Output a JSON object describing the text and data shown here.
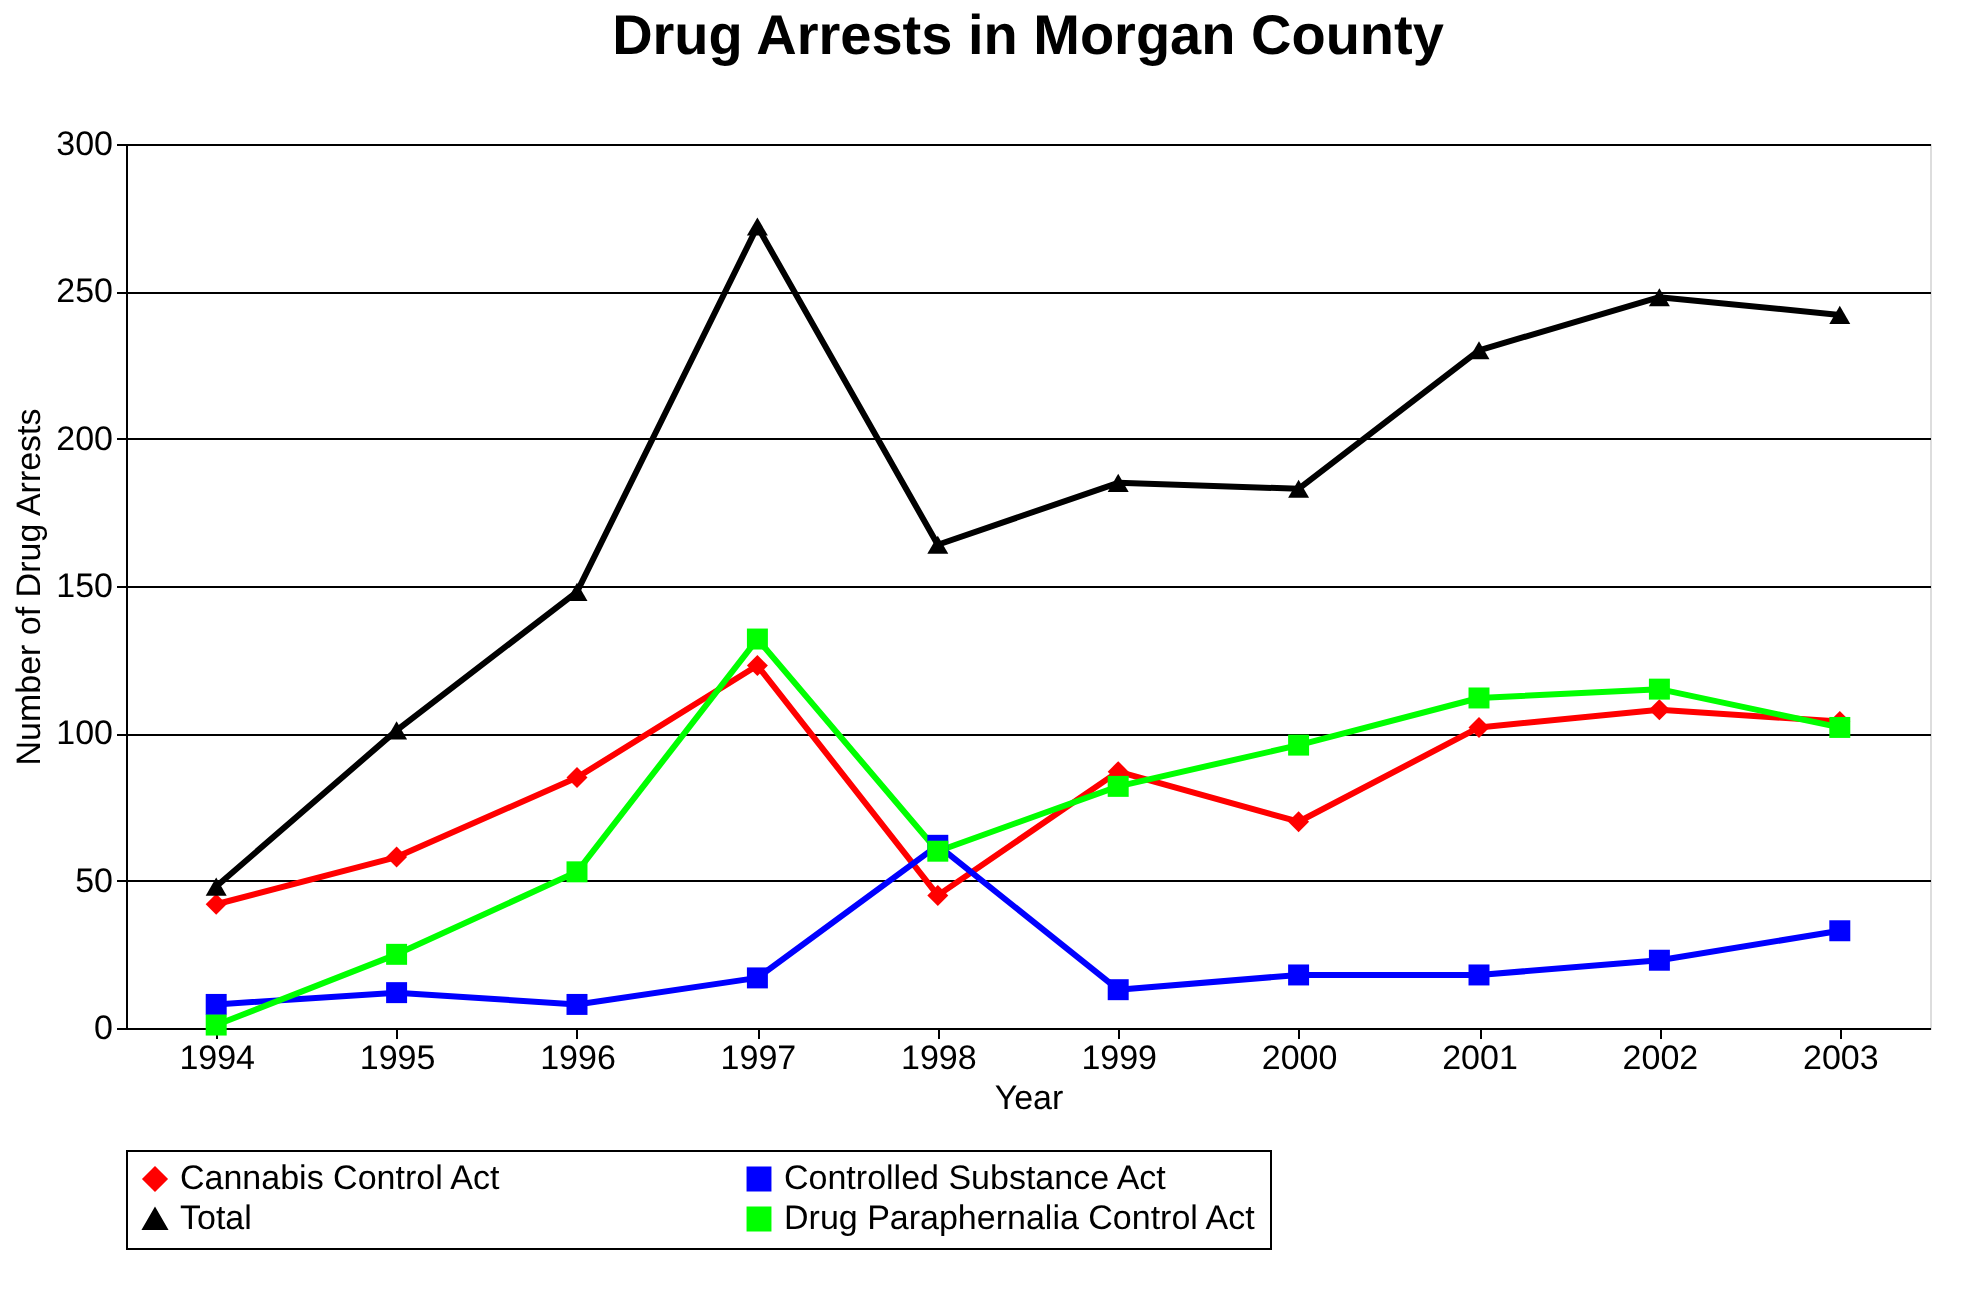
{
  "chart_data": {
    "type": "line",
    "title": "Drug Arrests in Morgan County",
    "xlabel": "Year",
    "ylabel": "Number of Drug Arrests",
    "categories": [
      "1994",
      "1995",
      "1996",
      "1997",
      "1998",
      "1999",
      "2000",
      "2001",
      "2002",
      "2003"
    ],
    "series": [
      {
        "name": "Cannabis Control Act",
        "color": "#ff0000",
        "marker": "diamond",
        "values": [
          42,
          58,
          85,
          123,
          45,
          87,
          70,
          102,
          108,
          104
        ]
      },
      {
        "name": "Controlled Substance Act",
        "color": "#0000ff",
        "marker": "square",
        "values": [
          8,
          12,
          8,
          17,
          62,
          13,
          18,
          18,
          23,
          33
        ]
      },
      {
        "name": "Total",
        "color": "#000000",
        "marker": "triangle",
        "values": [
          48,
          101,
          148,
          272,
          164,
          185,
          183,
          230,
          248,
          242
        ]
      },
      {
        "name": "Drug Paraphernalia Control Act",
        "color": "#00ff00",
        "marker": "square",
        "values": [
          1,
          25,
          53,
          132,
          60,
          82,
          96,
          112,
          115,
          102
        ]
      }
    ],
    "ylim": [
      0,
      300
    ],
    "yticks": [
      0,
      50,
      100,
      150,
      200,
      250,
      300
    ],
    "grid": "y",
    "legend": "bottom",
    "line_style": "solid"
  }
}
